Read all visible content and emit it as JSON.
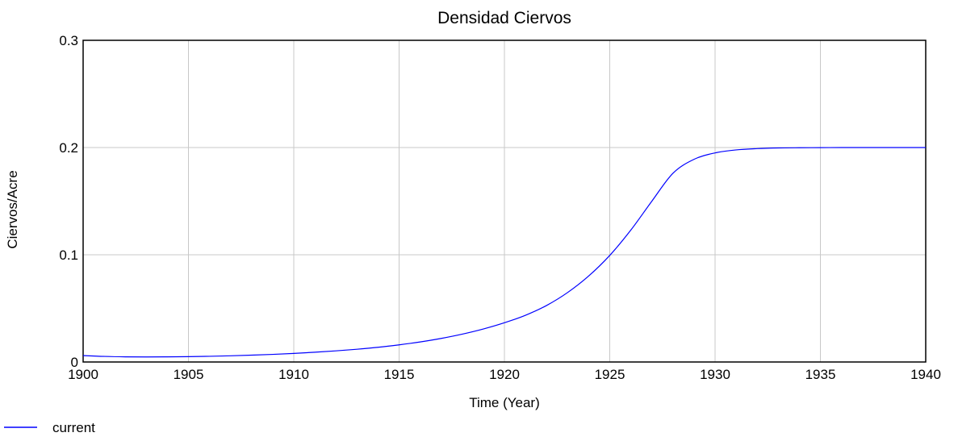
{
  "chart_data": {
    "type": "line",
    "title": "Densidad Ciervos",
    "xlabel": "Time (Year)",
    "ylabel": "Ciervos/Acre",
    "xlim": [
      1900,
      1940
    ],
    "ylim": [
      0,
      0.3
    ],
    "xticks": [
      1900,
      1905,
      1910,
      1915,
      1920,
      1925,
      1930,
      1935,
      1940
    ],
    "xtick_labels": [
      "1900",
      "1905",
      "1910",
      "1915",
      "1920",
      "1925",
      "1930",
      "1935",
      "1940"
    ],
    "yticks": [
      0,
      0.1,
      0.2,
      0.3
    ],
    "ytick_labels": [
      "0",
      "0.1",
      "0.2",
      "0.3"
    ],
    "grid": true,
    "legend_position": "bottom-left",
    "series": [
      {
        "name": "current",
        "color": "#0000ff",
        "x": [
          1900,
          1901,
          1902,
          1903,
          1904,
          1905,
          1906,
          1907,
          1908,
          1909,
          1910,
          1911,
          1912,
          1913,
          1914,
          1915,
          1916,
          1917,
          1918,
          1919,
          1920,
          1921,
          1922,
          1923,
          1924,
          1925,
          1926,
          1927,
          1928,
          1929,
          1930,
          1931,
          1932,
          1933,
          1934,
          1935,
          1936,
          1937,
          1938,
          1939,
          1940
        ],
        "y": [
          0.006,
          0.0052,
          0.0048,
          0.0047,
          0.0048,
          0.005,
          0.0053,
          0.0058,
          0.0064,
          0.0071,
          0.008,
          0.0091,
          0.0104,
          0.0119,
          0.0137,
          0.016,
          0.0187,
          0.022,
          0.026,
          0.0308,
          0.0366,
          0.0436,
          0.0527,
          0.0648,
          0.0802,
          0.0994,
          0.123,
          0.15,
          0.176,
          0.189,
          0.195,
          0.1978,
          0.199,
          0.1996,
          0.1998,
          0.1999,
          0.2,
          0.2,
          0.2,
          0.2,
          0.2
        ]
      }
    ]
  }
}
